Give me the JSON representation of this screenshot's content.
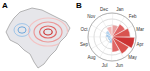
{
  "panel_labels": [
    "A",
    "B"
  ],
  "chart_data": {
    "type": "polar_bar",
    "categories": [
      "Jan",
      "Feb",
      "Mar",
      "Apr",
      "May",
      "Jun",
      "Jul",
      "Aug",
      "Sep",
      "Oct",
      "Nov",
      "Dec"
    ],
    "values": [
      4,
      5,
      6,
      7.5,
      6.5,
      5,
      2,
      1.5,
      1.5,
      2,
      2.5,
      3.5
    ],
    "colors": [
      "#e8a0a0",
      "#e06666",
      "#d9534f",
      "#cc3333",
      "#d9534f",
      "#e06666",
      "#9fc5e8",
      "#9fc5e8",
      "#9fc5e8",
      "#9fc5e8",
      "#b4d3ee",
      "#f0b8b8"
    ],
    "ylim": [
      0,
      8
    ],
    "yticks": [
      2,
      4,
      6,
      8
    ],
    "grid": true,
    "tick_labels": "x"
  }
}
